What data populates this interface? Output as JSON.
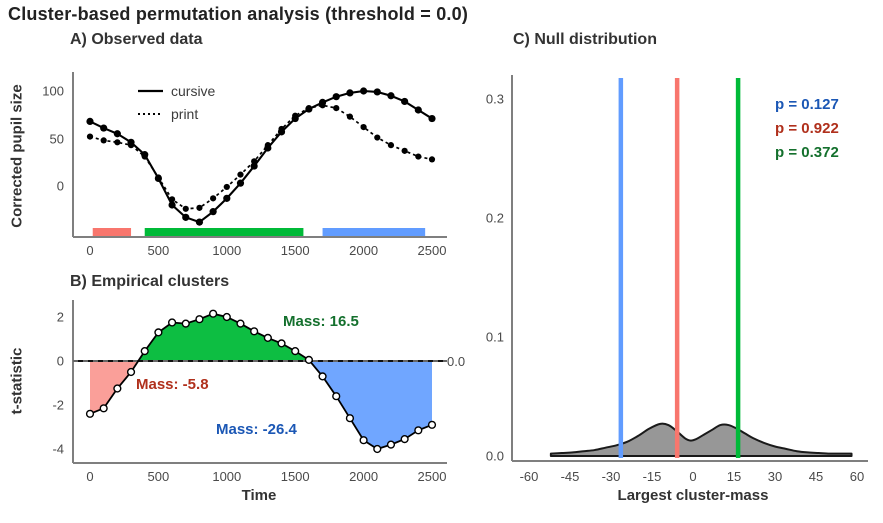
{
  "title": "Cluster-based permutation analysis (threshold = 0.0)",
  "palette": {
    "red": "#F8766D",
    "green": "#00BA38",
    "blue": "#619CFF",
    "red_dark": "#B0301C",
    "green_dark": "#14702D",
    "blue_dark": "#1B57B5",
    "density_fill": "#8E8E8E",
    "axis": "#7F7F7F",
    "line": "#000000"
  },
  "chart_data": [
    {
      "id": "observed",
      "type": "line",
      "title": "A) Observed data",
      "ylabel": "Corrected pupil size",
      "xlim": [
        0,
        2500
      ],
      "ylim": [
        -45,
        110
      ],
      "xticks": [
        0,
        500,
        1000,
        1500,
        2000,
        2500
      ],
      "yticks": [
        0,
        50,
        100
      ],
      "grid": "off",
      "legend_position": "inside-top-left",
      "x": [
        0,
        100,
        200,
        300,
        400,
        500,
        600,
        700,
        800,
        900,
        1000,
        1100,
        1200,
        1300,
        1400,
        1500,
        1600,
        1700,
        1800,
        1900,
        2000,
        2100,
        2200,
        2300,
        2400,
        2500
      ],
      "series": [
        {
          "name": "cursive",
          "style": "solid",
          "values": [
            68,
            61,
            55,
            46,
            33,
            8,
            -20,
            -33,
            -38,
            -27,
            -13,
            3,
            21,
            40,
            57,
            71,
            81,
            88,
            94,
            98,
            100,
            99,
            95,
            89,
            80,
            71
          ]
        },
        {
          "name": "print",
          "style": "dashed",
          "values": [
            52,
            48,
            46,
            43,
            31,
            9,
            -14,
            -24,
            -23,
            -13,
            -1,
            12,
            26,
            43,
            60,
            74,
            82,
            85,
            82,
            73,
            62,
            51,
            43,
            37,
            31,
            28
          ]
        }
      ],
      "cluster_bars": [
        {
          "color": "red",
          "from": 20,
          "to": 300
        },
        {
          "color": "green",
          "from": 400,
          "to": 1560
        },
        {
          "color": "blue",
          "from": 1700,
          "to": 2450
        }
      ]
    },
    {
      "id": "empirical_clusters",
      "type": "line",
      "title": "B) Empirical clusters",
      "xlabel": "Time",
      "ylabel": "t-statistic",
      "xlim": [
        0,
        2500
      ],
      "ylim": [
        -4.6,
        2.5
      ],
      "xticks": [
        0,
        500,
        1000,
        1500,
        2000,
        2500
      ],
      "yticks": [
        -4,
        -2,
        0,
        2
      ],
      "grid": "off",
      "threshold": 0.0,
      "threshold_label": "0.0",
      "x": [
        0,
        100,
        200,
        300,
        400,
        500,
        600,
        700,
        800,
        900,
        1000,
        1100,
        1200,
        1300,
        1400,
        1500,
        1600,
        1700,
        1800,
        1900,
        2000,
        2100,
        2200,
        2300,
        2400,
        2500
      ],
      "values": [
        -2.4,
        -2.15,
        -1.25,
        -0.5,
        0.45,
        1.3,
        1.75,
        1.7,
        1.9,
        2.15,
        2.0,
        1.7,
        1.35,
        1.05,
        0.8,
        0.45,
        0.05,
        -0.7,
        -1.6,
        -2.6,
        -3.6,
        -4.0,
        -3.8,
        -3.55,
        -3.15,
        -2.9
      ],
      "clusters": [
        {
          "color": "red",
          "mass": -5.8,
          "from": 0,
          "to": 352,
          "fill_opacity": 0.7
        },
        {
          "color": "green",
          "mass": 16.5,
          "from": 352,
          "to": 1608,
          "fill_opacity": 0.95
        },
        {
          "color": "blue",
          "mass": -26.4,
          "from": 1608,
          "to": 2500,
          "fill_opacity": 0.9
        }
      ],
      "mass_labels": [
        {
          "text": "Mass: 16.5",
          "color": "green_dark"
        },
        {
          "text": "Mass: -5.8",
          "color": "red_dark"
        },
        {
          "text": "Mass: -26.4",
          "color": "blue_dark"
        }
      ]
    },
    {
      "id": "null_distribution",
      "type": "area",
      "title": "C) Null distribution",
      "xlabel": "Largest cluster-mass",
      "xlim": [
        -60,
        60
      ],
      "ylim": [
        0,
        0.32
      ],
      "xticks": [
        -60,
        -45,
        -30,
        -15,
        0,
        15,
        30,
        45,
        60
      ],
      "yticks": [
        0,
        0.1,
        0.2,
        0.3
      ],
      "ytick_labels": [
        "0.0",
        "0.1",
        "0.2",
        "0.3"
      ],
      "grid": "off",
      "density_x": [
        -52,
        -48,
        -44,
        -40,
        -36,
        -32,
        -28,
        -24,
        -20,
        -16,
        -12,
        -9,
        -6,
        -3,
        -1,
        1,
        4,
        7,
        10,
        13,
        16,
        19,
        22,
        26,
        30,
        34,
        38,
        42,
        46,
        50,
        54,
        58
      ],
      "density_y": [
        0.002,
        0.0025,
        0.003,
        0.004,
        0.005,
        0.007,
        0.009,
        0.012,
        0.017,
        0.023,
        0.027,
        0.026,
        0.021,
        0.015,
        0.013,
        0.014,
        0.018,
        0.022,
        0.026,
        0.026,
        0.023,
        0.019,
        0.015,
        0.011,
        0.008,
        0.006,
        0.004,
        0.003,
        0.0025,
        0.002,
        0.002,
        0.002
      ],
      "vlines": [
        {
          "x": -26.4,
          "color": "blue"
        },
        {
          "x": -5.8,
          "color": "red"
        },
        {
          "x": 16.5,
          "color": "green"
        }
      ],
      "p_labels": [
        {
          "text": "p = 0.127",
          "color": "blue_dark"
        },
        {
          "text": "p = 0.922",
          "color": "red_dark"
        },
        {
          "text": "p = 0.372",
          "color": "green_dark"
        }
      ]
    }
  ]
}
